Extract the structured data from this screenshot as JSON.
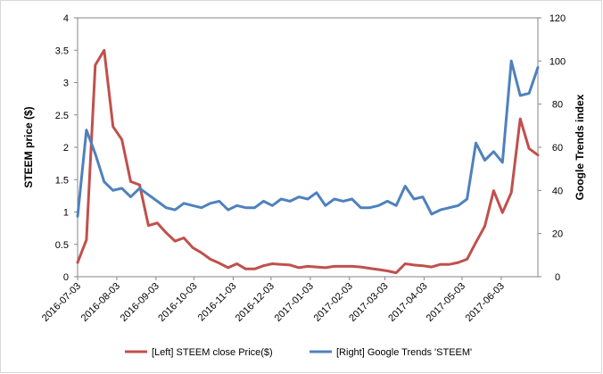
{
  "chart_data": {
    "type": "line",
    "x": [
      "2016-07-03",
      "2016-07-10",
      "2016-07-17",
      "2016-07-24",
      "2016-07-31",
      "2016-08-07",
      "2016-08-14",
      "2016-08-21",
      "2016-08-28",
      "2016-09-04",
      "2016-09-11",
      "2016-09-18",
      "2016-09-25",
      "2016-10-02",
      "2016-10-09",
      "2016-10-16",
      "2016-10-23",
      "2016-10-30",
      "2016-11-06",
      "2016-11-13",
      "2016-11-20",
      "2016-11-27",
      "2016-12-04",
      "2016-12-11",
      "2016-12-18",
      "2016-12-25",
      "2017-01-01",
      "2017-01-08",
      "2017-01-15",
      "2017-01-22",
      "2017-01-29",
      "2017-02-05",
      "2017-02-12",
      "2017-02-19",
      "2017-02-26",
      "2017-03-05",
      "2017-03-12",
      "2017-03-19",
      "2017-03-26",
      "2017-04-02",
      "2017-04-09",
      "2017-04-16",
      "2017-04-23",
      "2017-04-30",
      "2017-05-07",
      "2017-05-14",
      "2017-05-21",
      "2017-05-28",
      "2017-06-04",
      "2017-06-11",
      "2017-06-18",
      "2017-06-25",
      "2017-07-02"
    ],
    "x_tick_labels": [
      "2016-07-03",
      "2016-08-03",
      "2016-09-03",
      "2016-10-03",
      "2016-11-03",
      "2016-12-03",
      "2017-01-03",
      "2017-02-03",
      "2017-03-03",
      "2017-04-03",
      "2017-05-03",
      "2017-06-03"
    ],
    "x_tick_values": [
      "2016-07-03",
      "2016-08-03",
      "2016-09-03",
      "2016-10-03",
      "2016-11-03",
      "2016-12-03",
      "2017-01-03",
      "2017-02-03",
      "2017-03-03",
      "2017-04-03",
      "2017-05-03",
      "2017-06-03"
    ],
    "series": [
      {
        "name": "[Left] STEEM close Price($)",
        "axis": "left",
        "color": "#c0504d",
        "values": [
          0.22,
          0.57,
          3.27,
          3.5,
          2.32,
          2.12,
          1.47,
          1.42,
          0.79,
          0.83,
          0.68,
          0.55,
          0.6,
          0.45,
          0.37,
          0.27,
          0.21,
          0.14,
          0.2,
          0.12,
          0.12,
          0.17,
          0.2,
          0.19,
          0.18,
          0.14,
          0.16,
          0.15,
          0.14,
          0.16,
          0.16,
          0.16,
          0.15,
          0.13,
          0.11,
          0.09,
          0.06,
          0.2,
          0.18,
          0.17,
          0.15,
          0.19,
          0.19,
          0.22,
          0.27,
          0.53,
          0.78,
          1.33,
          0.99,
          1.3,
          2.44,
          1.98,
          1.88
        ]
      },
      {
        "name": "[Right] Google Trends 'STEEM'",
        "axis": "right",
        "color": "#4f81bd",
        "values": [
          28,
          68,
          57,
          44,
          40,
          41,
          37,
          41,
          38,
          35,
          32,
          31,
          34,
          33,
          32,
          34,
          35,
          31,
          33,
          32,
          32,
          35,
          33,
          36,
          35,
          37,
          36,
          39,
          33,
          36,
          35,
          36,
          32,
          32,
          33,
          35,
          33,
          42,
          36,
          37,
          29,
          31,
          32,
          33,
          36,
          62,
          54,
          58,
          53,
          100,
          84,
          85,
          97
        ]
      }
    ],
    "ylabel_left": "STEEM  price ($)",
    "ylabel_right": "Google Trends index",
    "ylim_left": [
      0,
      4
    ],
    "ylim_right": [
      0,
      120
    ],
    "yticks_left": [
      "0",
      "0.5",
      "1",
      "1.5",
      "2",
      "2.5",
      "3",
      "3.5",
      "4"
    ],
    "yticks_right": [
      "0",
      "20",
      "40",
      "60",
      "80",
      "100",
      "120"
    ],
    "grid": false,
    "legend_position": "bottom"
  }
}
